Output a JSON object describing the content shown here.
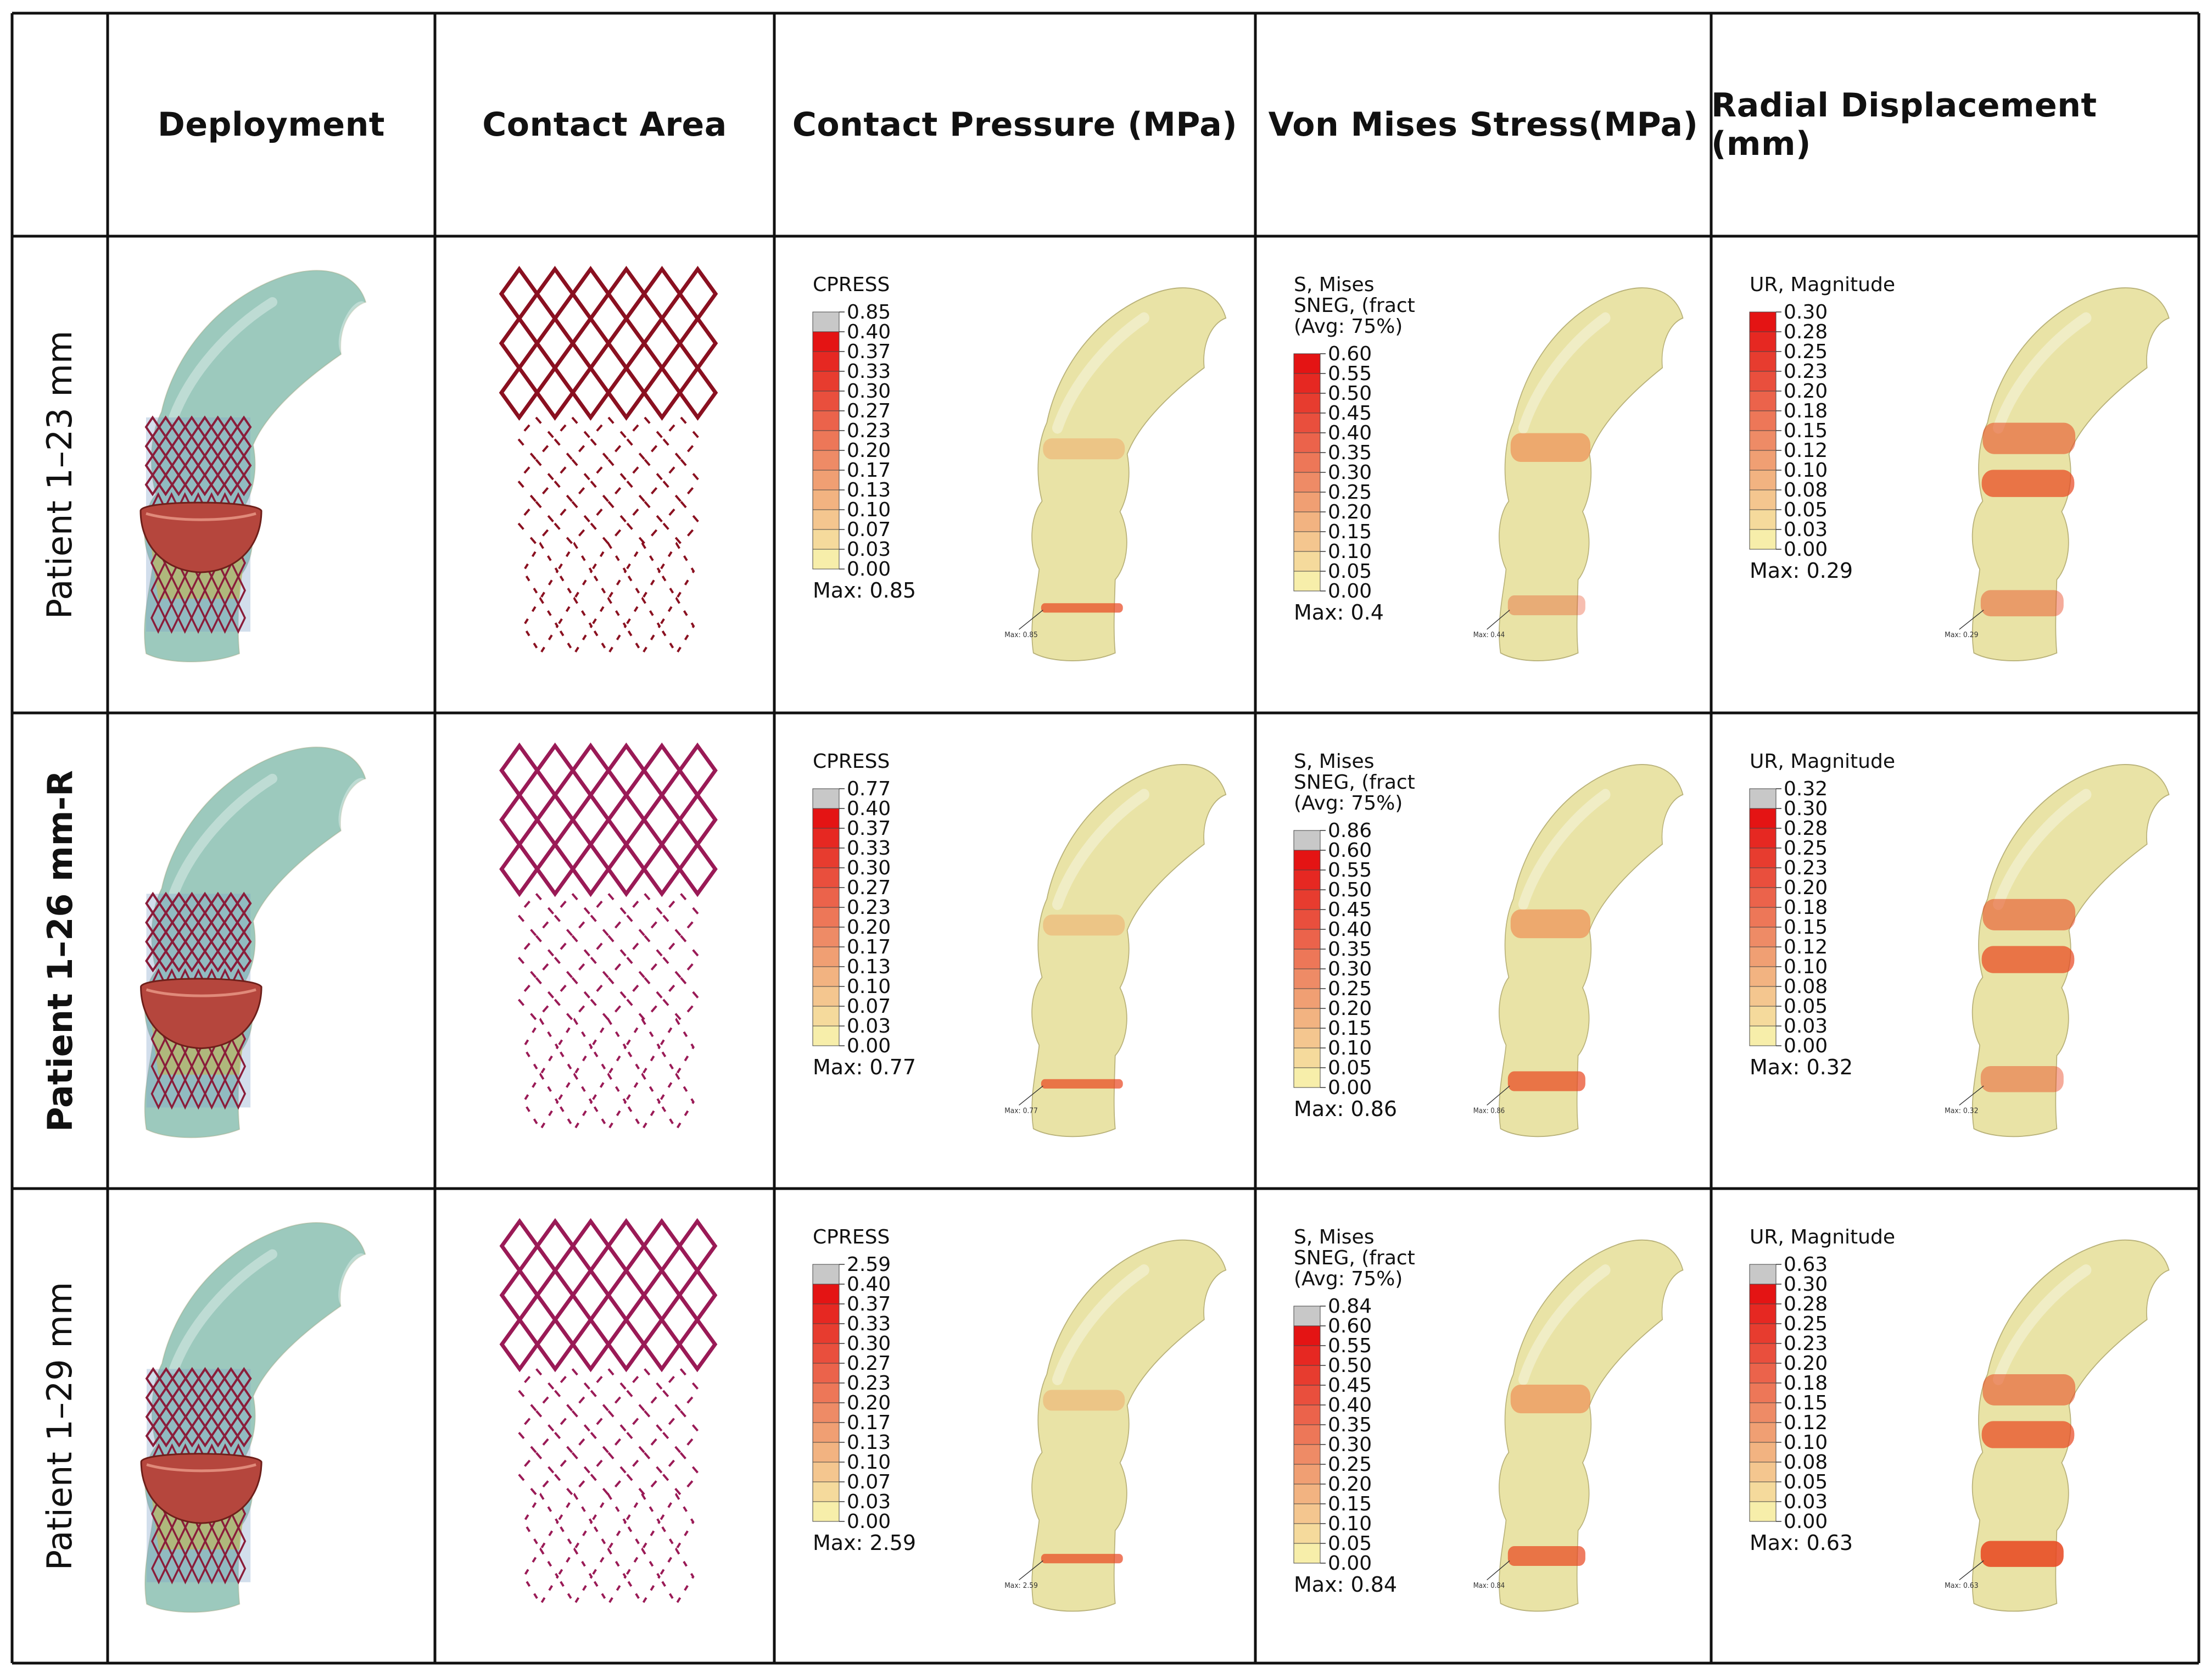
{
  "table": {
    "headers": [
      "",
      "Deployment",
      "Contact Area",
      "Contact Pressure (MPa)",
      "Von Mises Stress(MPa)",
      "Radial Displacement (mm)"
    ],
    "rows": [
      {
        "label": "Patient 1–23 mm",
        "bold": false,
        "cpress": {
          "title": "CPRESS",
          "max_label": "Max: 0.85",
          "marker": "Max: 0.85",
          "ticks": [
            "0.85",
            "0.40",
            "0.37",
            "0.33",
            "0.30",
            "0.27",
            "0.23",
            "0.20",
            "0.17",
            "0.13",
            "0.10",
            "0.07",
            "0.03",
            "0.00"
          ],
          "over": true
        },
        "mises": {
          "title": [
            "S, Mises",
            "SNEG, (fract",
            "(Avg: 75%)"
          ],
          "max_label": "Max: 0.4",
          "marker": "Max: 0.44",
          "ticks": [
            "0.60",
            "0.55",
            "0.50",
            "0.45",
            "0.40",
            "0.35",
            "0.30",
            "0.25",
            "0.20",
            "0.15",
            "0.10",
            "0.05",
            "0.00"
          ],
          "over": false
        },
        "ur": {
          "title": "UR, Magnitude",
          "max_label": "Max: 0.29",
          "marker": "Max: 0.29",
          "ticks": [
            "0.30",
            "0.28",
            "0.25",
            "0.23",
            "0.20",
            "0.18",
            "0.15",
            "0.12",
            "0.10",
            "0.08",
            "0.05",
            "0.03",
            "0.00"
          ],
          "over": false
        }
      },
      {
        "label": "Patient 1–26 mm-R",
        "bold": true,
        "cpress": {
          "title": "CPRESS",
          "max_label": "Max: 0.77",
          "marker": "Max: 0.77",
          "ticks": [
            "0.77",
            "0.40",
            "0.37",
            "0.33",
            "0.30",
            "0.27",
            "0.23",
            "0.20",
            "0.17",
            "0.13",
            "0.10",
            "0.07",
            "0.03",
            "0.00"
          ],
          "over": true
        },
        "mises": {
          "title": [
            "S, Mises",
            "SNEG, (fract",
            "(Avg: 75%)"
          ],
          "max_label": "Max: 0.86",
          "marker": "Max: 0.86",
          "ticks": [
            "0.86",
            "0.60",
            "0.55",
            "0.50",
            "0.45",
            "0.40",
            "0.35",
            "0.30",
            "0.25",
            "0.20",
            "0.15",
            "0.10",
            "0.05",
            "0.00"
          ],
          "over": true
        },
        "ur": {
          "title": "UR, Magnitude",
          "max_label": "Max: 0.32",
          "marker": "Max: 0.32",
          "ticks": [
            "0.32",
            "0.30",
            "0.28",
            "0.25",
            "0.23",
            "0.20",
            "0.18",
            "0.15",
            "0.12",
            "0.10",
            "0.08",
            "0.05",
            "0.03",
            "0.00"
          ],
          "over": true
        }
      },
      {
        "label": "Patient 1–29 mm",
        "bold": false,
        "cpress": {
          "title": "CPRESS",
          "max_label": "Max: 2.59",
          "marker": "Max: 2.59",
          "ticks": [
            "2.59",
            "0.40",
            "0.37",
            "0.33",
            "0.30",
            "0.27",
            "0.23",
            "0.20",
            "0.17",
            "0.13",
            "0.10",
            "0.07",
            "0.03",
            "0.00"
          ],
          "over": true
        },
        "mises": {
          "title": [
            "S, Mises",
            "SNEG, (fract",
            "(Avg: 75%)"
          ],
          "max_label": "Max: 0.84",
          "marker": "Max: 0.84",
          "ticks": [
            "0.84",
            "0.60",
            "0.55",
            "0.50",
            "0.45",
            "0.40",
            "0.35",
            "0.30",
            "0.25",
            "0.20",
            "0.15",
            "0.10",
            "0.05",
            "0.00"
          ],
          "over": true
        },
        "ur": {
          "title": "UR, Magnitude",
          "max_label": "Max: 0.63",
          "marker": "Max: 0.63",
          "ticks": [
            "0.63",
            "0.30",
            "0.28",
            "0.25",
            "0.23",
            "0.20",
            "0.18",
            "0.15",
            "0.12",
            "0.10",
            "0.08",
            "0.05",
            "0.03",
            "0.00"
          ],
          "over": true
        }
      }
    ]
  },
  "colors": {
    "border": "#111111",
    "aorta_deploy": "#9cc9bd",
    "aorta_result": "#e9e3a6",
    "stent_wire": "#8a1d3a",
    "leaflet": "#b5463d",
    "hot_band": "#e8451e",
    "over_range": "#c8c8c8"
  }
}
